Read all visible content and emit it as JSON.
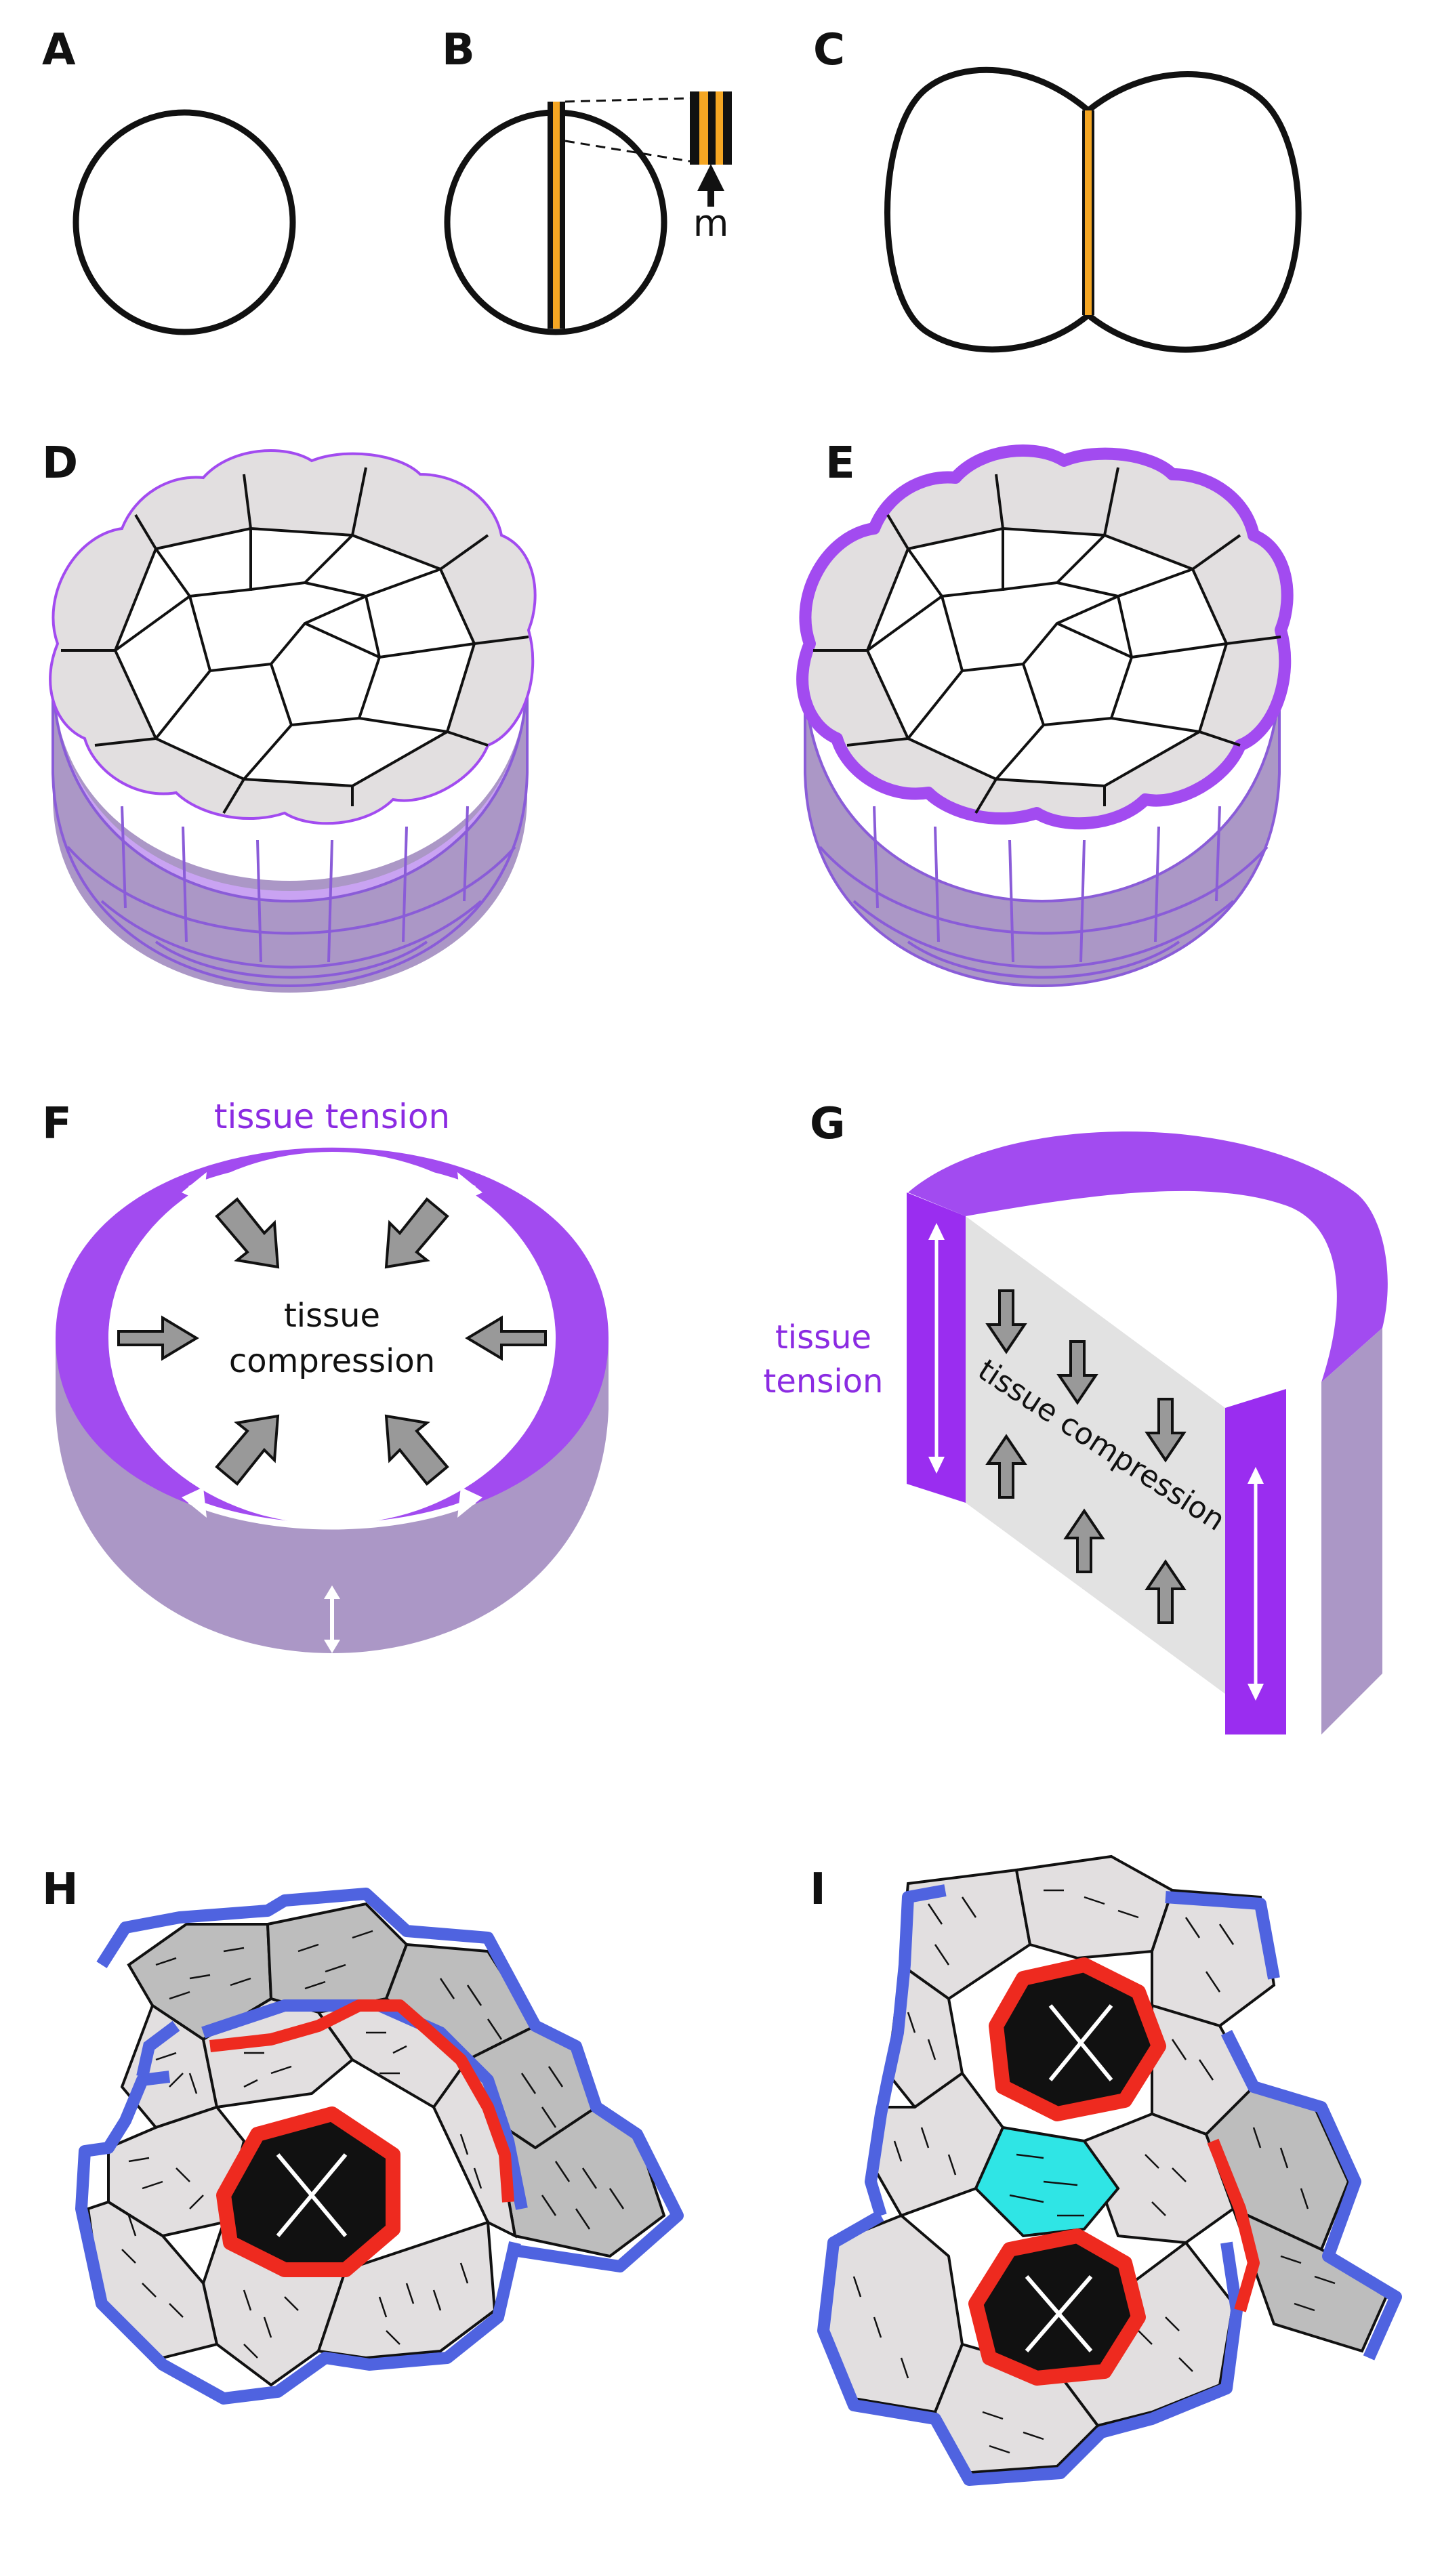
{
  "panels": [
    "A",
    "B",
    "C",
    "D",
    "E",
    "F",
    "G",
    "H",
    "I"
  ],
  "panel_b": {
    "marker": "m"
  },
  "panel_f": {
    "tension": "tissue tension",
    "compression_line1": "tissue",
    "compression_line2": "compression"
  },
  "panel_g": {
    "tension_line1": "tissue",
    "tension_line2": "tension",
    "compression": "tissue compression"
  },
  "colors": {
    "purple": "#a24bf0",
    "purple_side": "#ab97c6",
    "orange": "#f5a623",
    "outer_cell": "#e2dfe0",
    "dark_cell": "#bdbdbd",
    "blue_edge": "#4f63e0",
    "red_edge": "#ee2a1f",
    "cyan_cell": "#2fe5e5"
  }
}
